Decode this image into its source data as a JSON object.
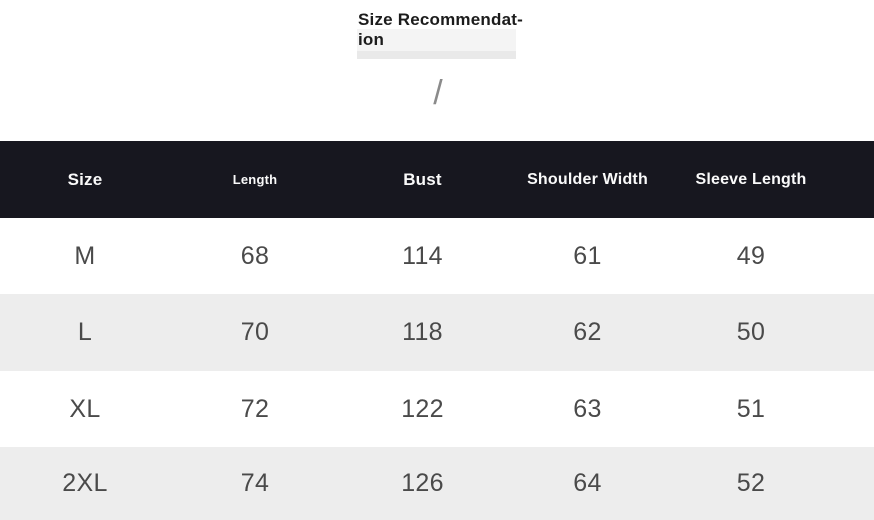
{
  "header": {
    "title_line1": "Size Recommendat-",
    "title_line2": "ion",
    "separator": "/"
  },
  "table": {
    "columns": [
      "Size",
      "Length",
      "Bust",
      "Shoulder Width",
      "Sleeve Length"
    ],
    "rows": [
      {
        "size": "M",
        "length": "68",
        "bust": "114",
        "shoulder_width": "61",
        "sleeve_length": "49"
      },
      {
        "size": "L",
        "length": "70",
        "bust": "118",
        "shoulder_width": "62",
        "sleeve_length": "50"
      },
      {
        "size": "XL",
        "length": "72",
        "bust": "122",
        "shoulder_width": "63",
        "sleeve_length": "51"
      },
      {
        "size": "2XL",
        "length": "74",
        "bust": "126",
        "shoulder_width": "64",
        "sleeve_length": "52"
      }
    ]
  },
  "colors": {
    "header_bg": "#17171f",
    "header_text": "#fafafa",
    "stripe_bg": "#ededed",
    "data_text": "#4a4a4a",
    "title_highlight": "#f4f4f4"
  }
}
